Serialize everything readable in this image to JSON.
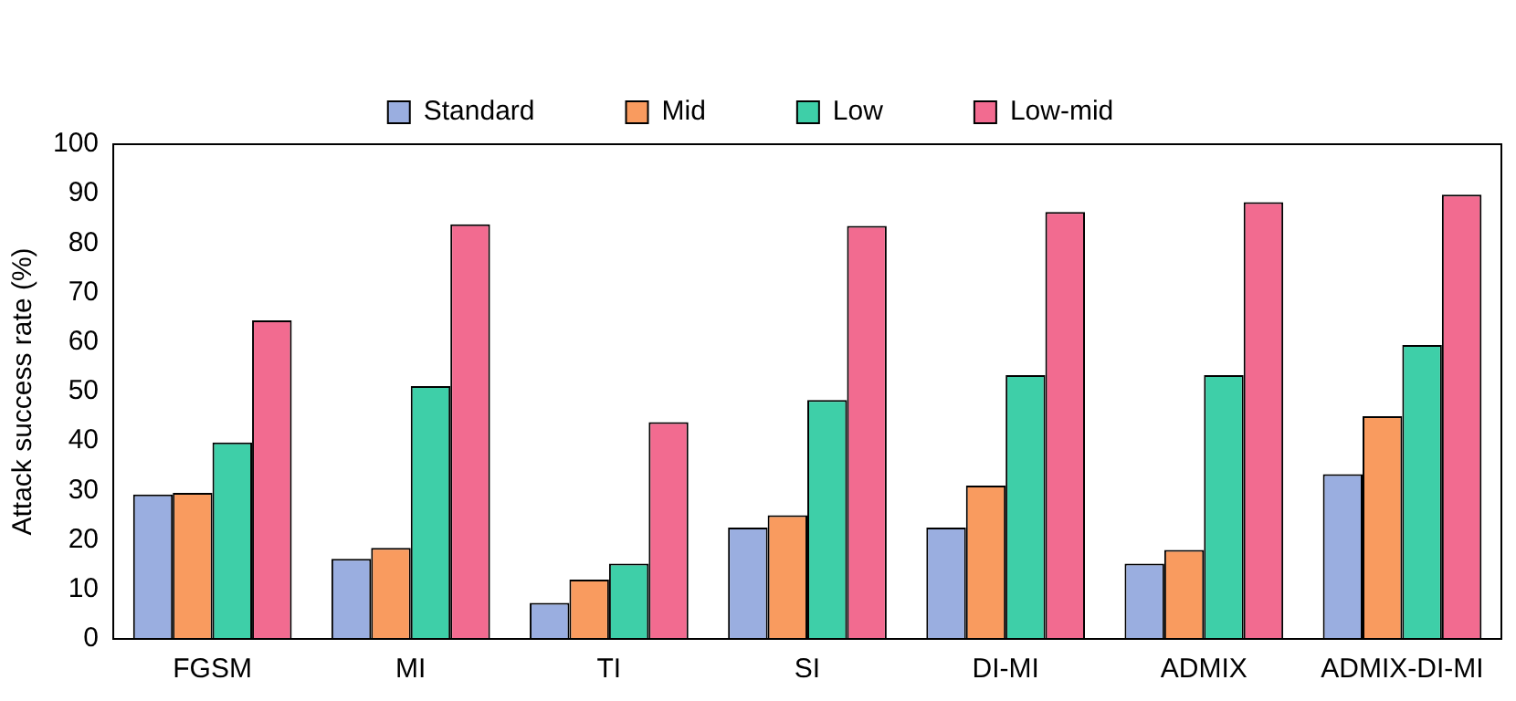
{
  "chart_data": {
    "type": "bar",
    "ylabel": "Attack success rate (%)",
    "categories": [
      "FGSM",
      "MI",
      "TI",
      "SI",
      "DI-MI",
      "ADMIX",
      "ADMIX-DI-MI"
    ],
    "series": [
      {
        "name": "Standard",
        "color": "#9aaee0",
        "values": [
          29.2,
          16.2,
          7.3,
          22.5,
          22.5,
          15.2,
          33.3
        ]
      },
      {
        "name": "Mid",
        "color": "#f99b5f",
        "values": [
          29.5,
          18.4,
          12,
          25,
          31,
          18,
          45
        ]
      },
      {
        "name": "Low",
        "color": "#3ecfa8",
        "values": [
          39.7,
          51.1,
          15.2,
          48.3,
          53.3,
          53.3,
          59.4
        ]
      },
      {
        "name": "Low-mid",
        "color": "#f26b90",
        "values": [
          64.4,
          83.8,
          43.8,
          83.5,
          86.3,
          88.3,
          89.8
        ]
      }
    ],
    "ylim": [
      0,
      100
    ],
    "yticks": [
      0,
      10,
      20,
      30,
      40,
      50,
      60,
      70,
      80,
      90,
      100
    ],
    "grid": false,
    "legend": "top"
  }
}
